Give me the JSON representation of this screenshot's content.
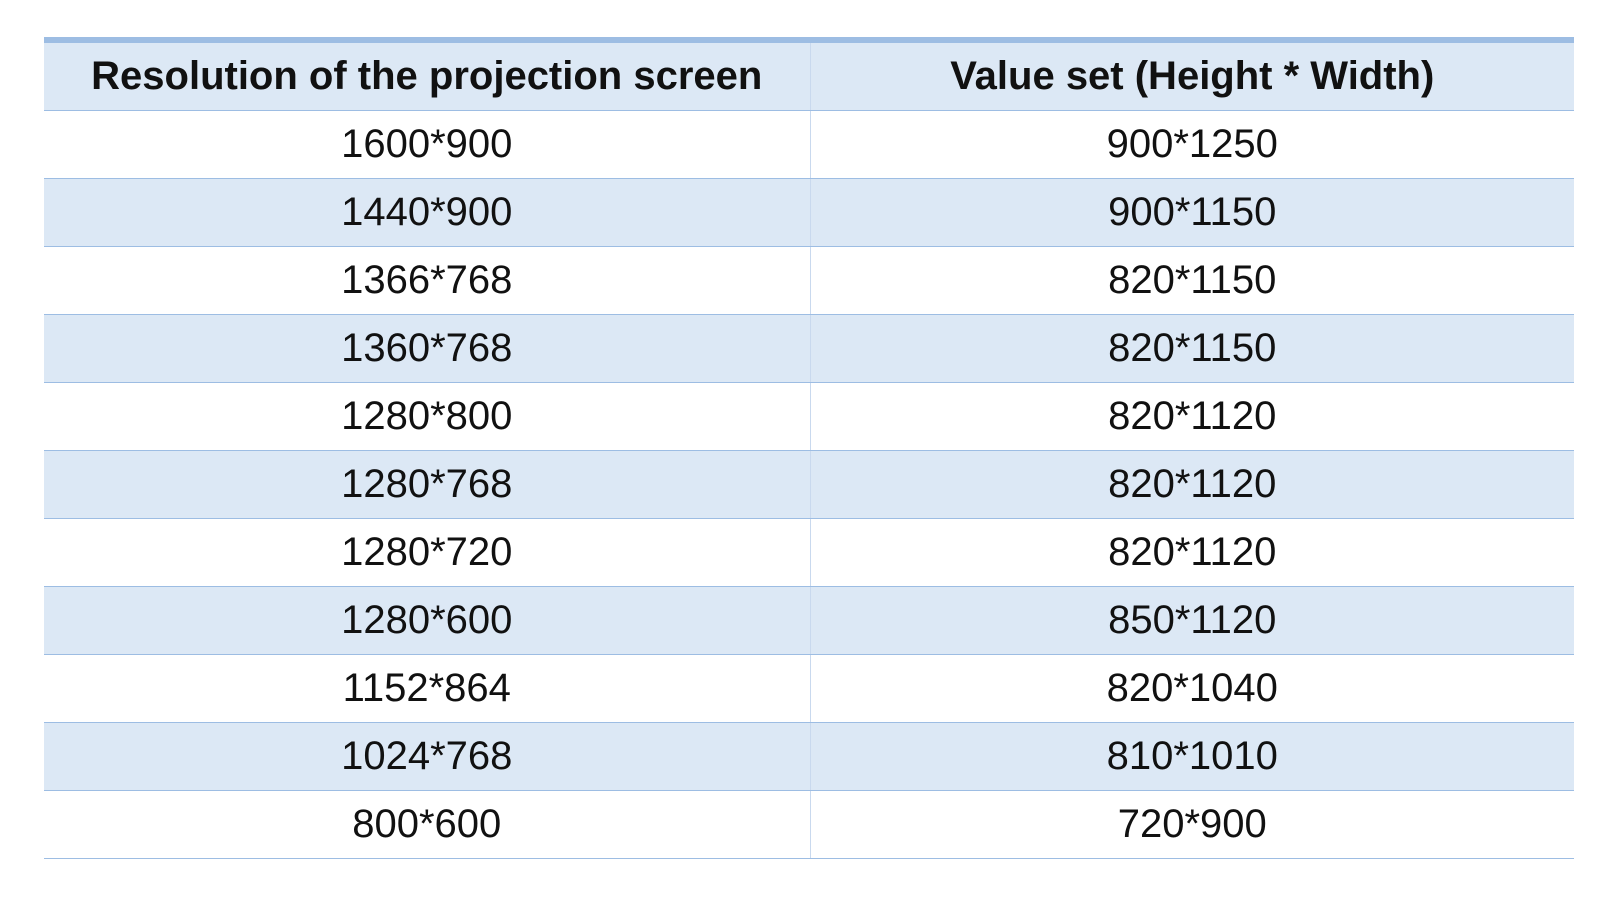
{
  "table": {
    "headers": [
      "Resolution of the projection screen",
      "Value set (Height * Width)"
    ],
    "rows": [
      [
        "1600*900",
        "900*1250"
      ],
      [
        "1440*900",
        "900*1150"
      ],
      [
        "1366*768",
        "820*1150"
      ],
      [
        "1360*768",
        "820*1150"
      ],
      [
        "1280*800",
        "820*1120"
      ],
      [
        "1280*768",
        "820*1120"
      ],
      [
        "1280*720",
        "820*1120"
      ],
      [
        "1280*600",
        "850*1120"
      ],
      [
        "1152*864",
        "820*1040"
      ],
      [
        "1024*768",
        "810*1010"
      ],
      [
        "800*600",
        "720*900"
      ]
    ]
  },
  "colors": {
    "accent": "#9dbde3",
    "band": "#dce8f5"
  }
}
